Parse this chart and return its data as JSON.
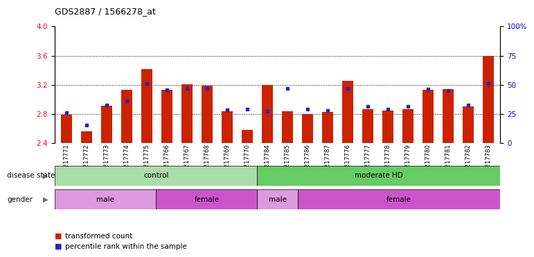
{
  "title": "GDS2887 / 1566278_at",
  "samples": [
    "GSM217771",
    "GSM217772",
    "GSM217773",
    "GSM217774",
    "GSM217775",
    "GSM217766",
    "GSM217767",
    "GSM217768",
    "GSM217769",
    "GSM217770",
    "GSM217784",
    "GSM217785",
    "GSM217786",
    "GSM217787",
    "GSM217776",
    "GSM217777",
    "GSM217778",
    "GSM217779",
    "GSM217780",
    "GSM217781",
    "GSM217782",
    "GSM217783"
  ],
  "red_values": [
    2.79,
    2.56,
    2.91,
    3.13,
    3.42,
    3.13,
    3.21,
    3.19,
    2.84,
    2.58,
    3.2,
    2.84,
    2.8,
    2.83,
    3.25,
    2.87,
    2.85,
    2.87,
    3.13,
    3.14,
    2.9,
    3.6
  ],
  "blue_values": [
    2.82,
    2.65,
    2.92,
    2.98,
    3.22,
    3.13,
    3.15,
    3.15,
    2.86,
    2.87,
    2.84,
    3.15,
    2.87,
    2.85,
    3.15,
    2.9,
    2.87,
    2.9,
    3.14,
    3.12,
    2.92,
    3.22
  ],
  "ylim_left": [
    2.4,
    4.0
  ],
  "ylim_right": [
    0,
    100
  ],
  "yticks_left": [
    2.4,
    2.8,
    3.2,
    3.6,
    4.0
  ],
  "yticks_right": [
    0,
    25,
    50,
    75,
    100
  ],
  "ytick_labels_right": [
    "0",
    "25",
    "50",
    "75",
    "100%"
  ],
  "dotted_lines": [
    2.8,
    3.2,
    3.6
  ],
  "bar_color": "#cc2200",
  "dot_color": "#2222cc",
  "plot_bg": "#ffffff",
  "fig_bg": "#ffffff",
  "disease_groups": [
    {
      "label": "control",
      "start": 0,
      "end": 10,
      "color": "#aaddaa"
    },
    {
      "label": "moderate HD",
      "start": 10,
      "end": 22,
      "color": "#66cc66"
    }
  ],
  "gender_groups": [
    {
      "label": "male",
      "start": 0,
      "end": 5,
      "color": "#dd99dd"
    },
    {
      "label": "female",
      "start": 5,
      "end": 10,
      "color": "#cc55cc"
    },
    {
      "label": "male",
      "start": 10,
      "end": 12,
      "color": "#dd99dd"
    },
    {
      "label": "female",
      "start": 12,
      "end": 22,
      "color": "#cc55cc"
    }
  ],
  "legend_items": [
    {
      "label": "transformed count",
      "color": "#cc2200"
    },
    {
      "label": "percentile rank within the sample",
      "color": "#2222cc"
    }
  ],
  "label_disease": "disease state",
  "label_gender": "gender"
}
